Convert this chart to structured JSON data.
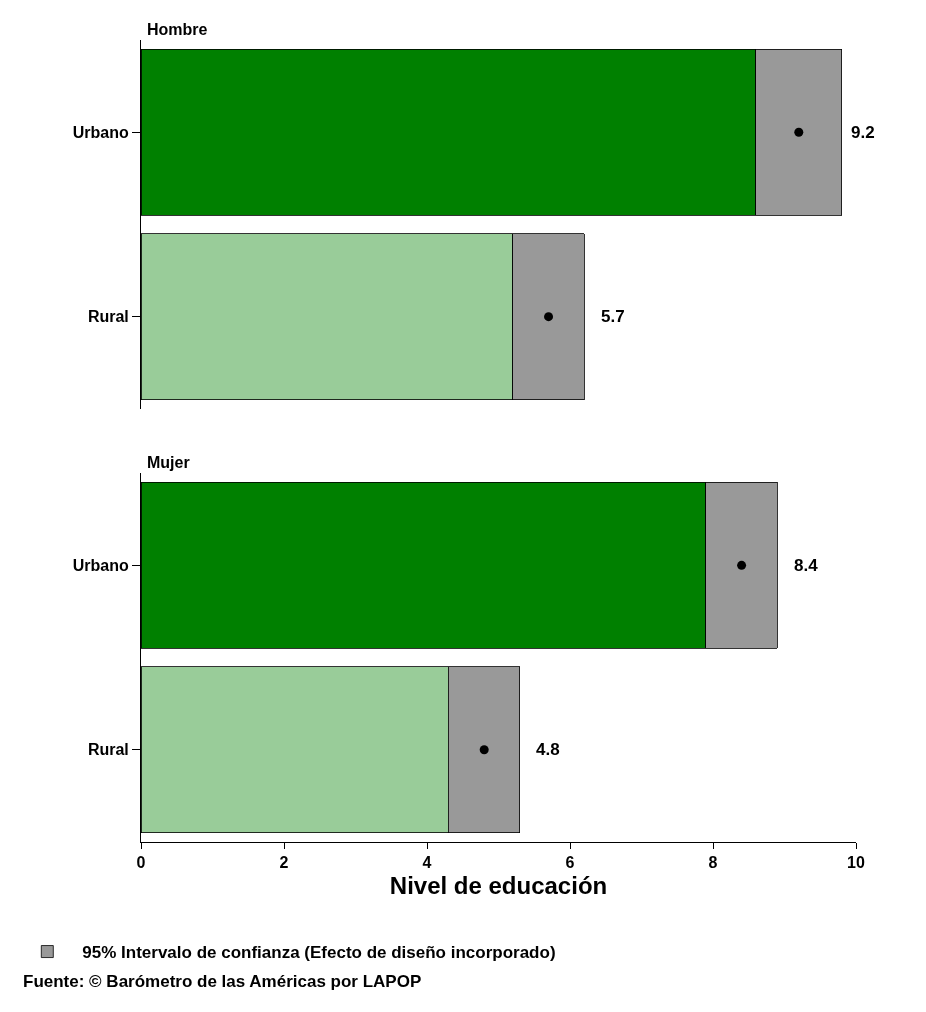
{
  "chart_data": [
    {
      "type": "bar",
      "title": "Hombre",
      "orientation": "horizontal",
      "stacked": true,
      "categories": [
        "Urbano",
        "Rural"
      ],
      "xlim": [
        0,
        10
      ],
      "xticks": [
        0,
        2,
        4,
        6,
        8,
        10
      ],
      "tick_labels": "y",
      "legend": false,
      "series": [
        {
          "colors": [
            "#008000",
            "#99cc99"
          ],
          "values": [
            8.6,
            5.2
          ]
        },
        {
          "color": "#999999",
          "values": [
            1.2,
            1.0
          ]
        },
        {
          "type": "scatter",
          "color": "#000000",
          "marker": "circle",
          "values": [
            9.2,
            5.7
          ],
          "value_labels": [
            "9.2",
            "5.7"
          ]
        }
      ]
    },
    {
      "type": "bar",
      "title": "Mujer",
      "orientation": "horizontal",
      "stacked": true,
      "categories": [
        "Urbano",
        "Rural"
      ],
      "xlim": [
        0,
        10
      ],
      "xticks": [
        0,
        2,
        4,
        6,
        8,
        10
      ],
      "xlabel": "Nivel de educación",
      "legend": "bottom",
      "series": [
        {
          "colors": [
            "#008000",
            "#99cc99"
          ],
          "values": [
            7.9,
            4.3
          ]
        },
        {
          "name": "95% Intervalo de confianza (Efecto de diseño incorporado)",
          "color": "#999999",
          "values": [
            1.0,
            1.0
          ]
        },
        {
          "type": "scatter",
          "color": "#000000",
          "marker": "circle",
          "values": [
            8.4,
            4.8
          ],
          "value_labels": [
            "8.4",
            "4.8"
          ]
        }
      ],
      "annotations": [
        "Fuente: © Barómetro de las Américas por LAPOP"
      ]
    }
  ]
}
